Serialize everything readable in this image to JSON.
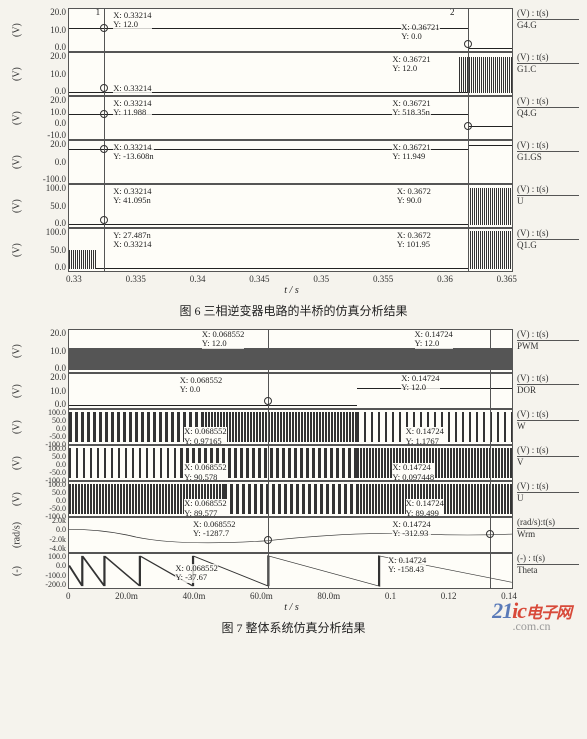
{
  "fig6": {
    "caption": "图 6  三相逆变器电路的半桥的仿真分析结果",
    "x_ticks": [
      "0.33",
      "0.335",
      "0.34",
      "0.345",
      "0.35",
      "0.355",
      "0.36",
      "0.365"
    ],
    "x_label": "t / s",
    "rows": [
      {
        "y_label": "(V)",
        "ticks": [
          "20.0",
          "10.0",
          "0.0"
        ],
        "right_top": "(V) : t(s)",
        "right_name": "G4.G",
        "marker1_num": "1",
        "m1": "X: 0.33214\nY: 12.0",
        "marker2_num": "2",
        "m2": "X: 0.36721\nY: 0.0"
      },
      {
        "y_label": "(V)",
        "ticks": [
          "20.0",
          "10.0",
          "0.0"
        ],
        "right_top": "(V) : t(s)",
        "right_name": "G1.C",
        "m1": "X: 0.33214",
        "m2": "X: 0.36721\nY: 12.0"
      },
      {
        "y_label": "(V)",
        "ticks": [
          "20.0",
          "10.0",
          "0.0",
          "-10.0"
        ],
        "right_top": "(V) : t(s)",
        "right_name": "Q4.G",
        "m1": "X: 0.33214\nY: 11.988",
        "m2": "X: 0.36721\nY: 518.35n"
      },
      {
        "y_label": "(V)",
        "ticks": [
          "20.0",
          "0.0",
          "-100.0"
        ],
        "right_top": "(V) : t(s)",
        "right_name": "G1.GS",
        "m1": "X: 0.33214\nY: -13.608n",
        "m2": "X: 0.36721\nY: 11.949"
      },
      {
        "y_label": "(V)",
        "ticks": [
          "100.0",
          "50.0",
          "0.0"
        ],
        "right_top": "(V) : t(s)",
        "right_name": "U",
        "m1": "X: 0.33214\nY: 41.095n",
        "m2": "X: 0.3672\nY: 90.0"
      },
      {
        "y_label": "(V)",
        "ticks": [
          "100.0",
          "50.0",
          "0.0"
        ],
        "right_top": "(V) : t(s)",
        "right_name": "Q1.G",
        "m1": "Y: 27.487n\nX: 0.33214",
        "m2": "X: 0.3672\nY: 101.95"
      }
    ]
  },
  "fig7": {
    "caption": "图 7  整体系统仿真分析结果",
    "x_ticks": [
      "0",
      "20.0m",
      "40.0m",
      "60.0m",
      "80.0m",
      "0.1",
      "0.12",
      "0.14"
    ],
    "x_label": "t / s",
    "rows": [
      {
        "y_label": "(V)",
        "ticks": [
          "20.0",
          "10.0",
          "0.0"
        ],
        "right_top": "(V) : t(s)",
        "right_name": "PWM",
        "m1": "X: 0.068552\nY: 12.0",
        "m2": "X: 0.14724\nY: 12.0"
      },
      {
        "y_label": "(V)",
        "ticks": [
          "20.0",
          "10.0",
          "0.0"
        ],
        "right_top": "(V) : t(s)",
        "right_name": "DOR",
        "m1": "X: 0.068552\nY: 0.0",
        "m2": "X: 0.14724\nY: 12.0"
      },
      {
        "y_label": "(V)",
        "ticks": [
          "100.0",
          "50.0",
          "0.0",
          "-50.0",
          "-100.0"
        ],
        "right_top": "(V) : t(s)",
        "right_name": "W",
        "m1": "X: 0.068552\nY: 0.97165",
        "m2": "X: 0.14724\nY: 1.1767"
      },
      {
        "y_label": "(V)",
        "ticks": [
          "100.0",
          "50.0",
          "0.0",
          "-50.0",
          "-100.0"
        ],
        "right_top": "(V) : t(s)",
        "right_name": "V",
        "m1": "X: 0.068552\nY: 90.578",
        "m2": "X: 0.14724\nY: 0.097448"
      },
      {
        "y_label": "(V)",
        "ticks": [
          "100.0",
          "50.0",
          "0.0",
          "-50.0",
          "-100.0"
        ],
        "right_top": "(V) : t(s)",
        "right_name": "U",
        "m1": "X: 0.068552\nY: 89.577",
        "m2": "X: 0.14724\nY: 89.499"
      },
      {
        "y_label": "(rad/s)",
        "ticks": [
          "2.0k",
          "0.0",
          "-2.0k",
          "-4.0k"
        ],
        "right_top": "(rad/s):t(s)",
        "right_name": "Wrm",
        "m1": "X: 0.068552\nY: -1287.7",
        "m2": "X: 0.14724\nY: -312.93"
      },
      {
        "y_label": "(-)",
        "ticks": [
          "100.0",
          "0.0",
          "-100.0",
          "-200.0"
        ],
        "right_top": "(-) : t(s)",
        "right_name": "Theta",
        "m1": "X: 0.068552\nY: -37.67",
        "m2": "X: 0.14724\nY: -158.43"
      }
    ]
  },
  "watermark": {
    "p1": "21",
    "p2": "ic",
    "p3": "电子网",
    "sub": ".com.cn"
  }
}
